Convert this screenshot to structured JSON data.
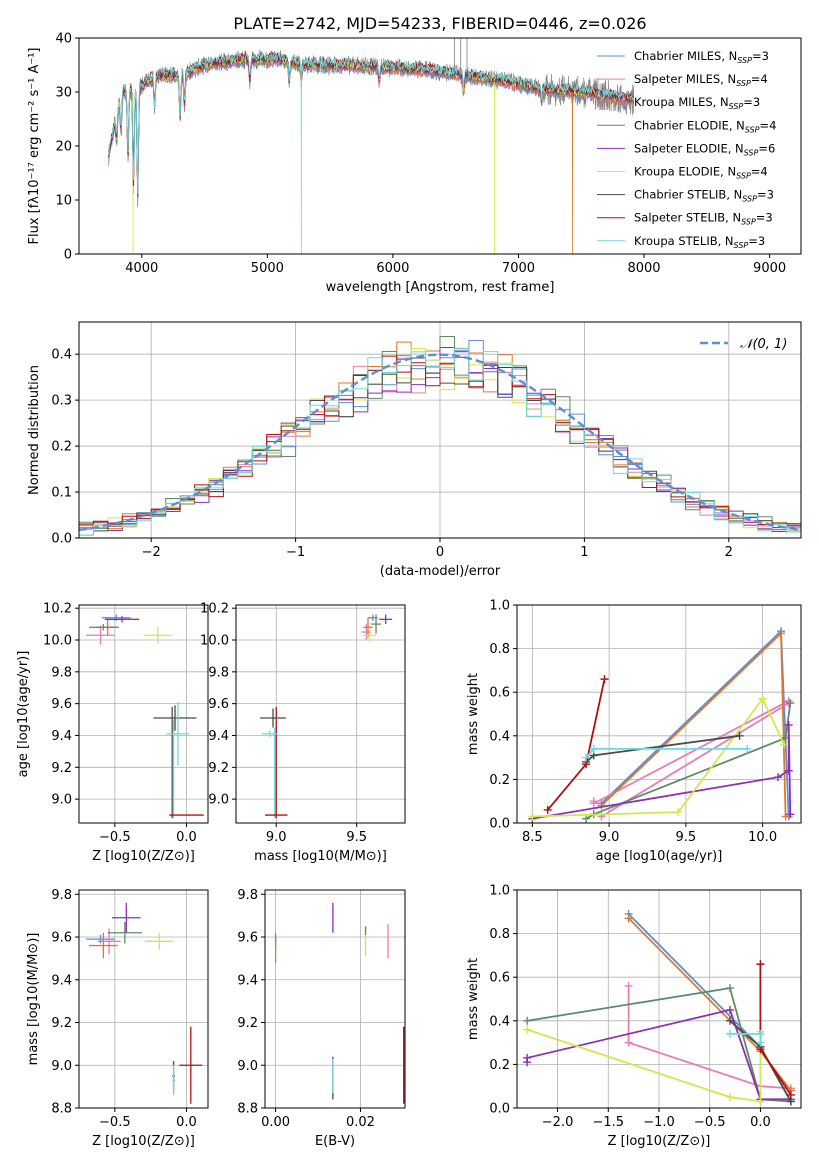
{
  "figure": {
    "title": "PLATE=2742, MJD=54233, FIBERID=0446, z=0.026"
  },
  "legend_ssp": [
    {
      "label": "Chabrier MILES, N",
      "sub": "SSP",
      "suf": "=3",
      "color": "#5b8fd6"
    },
    {
      "label": "Salpeter MILES, N",
      "sub": "SSP",
      "suf": "=4",
      "color": "#e87cb8"
    },
    {
      "label": "Kroupa MILES, N",
      "sub": "SSP",
      "suf": "=3",
      "color": "#e0782c"
    },
    {
      "label": "Chabrier ELODIE, N",
      "sub": "SSP",
      "suf": "=4",
      "color": "#5e8c68"
    },
    {
      "label": "Salpeter ELODIE, N",
      "sub": "SSP",
      "suf": "=6",
      "color": "#8e2fb4"
    },
    {
      "label": "Kroupa ELODIE, N",
      "sub": "SSP",
      "suf": "=4",
      "color": "#d2e84a"
    },
    {
      "label": "Chabrier STELIB, N",
      "sub": "SSP",
      "suf": "=3",
      "color": "#4b4b4b"
    },
    {
      "label": "Salpeter STELIB, N",
      "sub": "SSP",
      "suf": "=3",
      "color": "#b01010"
    },
    {
      "label": "Kroupa STELIB, N",
      "sub": "SSP",
      "suf": "=3",
      "color": "#6fd8e0"
    }
  ],
  "chart_data": [
    {
      "id": "spectrum",
      "type": "line",
      "xlabel": "wavelength [Angstrom, rest frame]",
      "ylabel": "Flux [fλ10⁻¹⁷ erg cm⁻² s⁻¹ A⁻¹]",
      "xlim": [
        3500,
        9250
      ],
      "ylim": [
        0,
        40
      ],
      "xticks": [
        4000,
        5000,
        6000,
        7000,
        8000,
        9000
      ],
      "yticks": [
        0,
        10,
        20,
        30,
        40
      ],
      "data_range": [
        3735,
        7920
      ],
      "continuum": [
        [
          3735,
          18
        ],
        [
          3800,
          26
        ],
        [
          3850,
          30
        ],
        [
          3950,
          30
        ],
        [
          4100,
          33
        ],
        [
          4300,
          33
        ],
        [
          4500,
          35
        ],
        [
          4800,
          36
        ],
        [
          5100,
          36
        ],
        [
          5300,
          35
        ],
        [
          5600,
          35
        ],
        [
          6000,
          34.5
        ],
        [
          6300,
          34
        ],
        [
          6600,
          33
        ],
        [
          6900,
          32
        ],
        [
          7200,
          30.5
        ],
        [
          7500,
          30
        ],
        [
          7800,
          29
        ],
        [
          7920,
          28.5
        ]
      ],
      "absorption_dips": [
        [
          3800,
          5
        ],
        [
          3835,
          6
        ],
        [
          3890,
          12
        ],
        [
          3934,
          18
        ],
        [
          3968,
          20
        ],
        [
          4102,
          6
        ],
        [
          4305,
          8
        ],
        [
          4340,
          6
        ],
        [
          4861,
          4
        ],
        [
          5175,
          4
        ],
        [
          5270,
          3
        ],
        [
          5890,
          3
        ],
        [
          6563,
          3
        ],
        [
          7185,
          2
        ]
      ],
      "spikes": [
        [
          3930,
          0,
          "Kroupa ELODIE"
        ],
        [
          5270,
          0,
          "Kroupa STELIB"
        ],
        [
          6810,
          0,
          "Kroupa ELODIE"
        ],
        [
          7430,
          0,
          "Kroupa MILES"
        ],
        [
          6490,
          40,
          "data"
        ],
        [
          6540,
          40,
          "data"
        ],
        [
          6590,
          40,
          "data"
        ]
      ]
    },
    {
      "id": "residuals",
      "type": "histogram",
      "xlabel": "(data-model)/error",
      "ylabel": "Normed distribution",
      "xlim": [
        -2.5,
        2.5
      ],
      "ylim": [
        0,
        0.47
      ],
      "xticks": [
        -2,
        -1,
        0,
        1,
        2
      ],
      "yticks": [
        0.0,
        0.1,
        0.2,
        0.3,
        0.4
      ],
      "bin_width": 0.1,
      "legend": "𝒩(0, 1)",
      "gaussian": {
        "mean": 0,
        "sigma": 1,
        "color": "#5b8fd6"
      }
    },
    {
      "id": "age-vs-Z",
      "type": "scatter",
      "xlabel": "Z [log10(Z/Z⊙)]",
      "ylabel": "age  [log10(age/yr)]",
      "xlim": [
        -0.75,
        0.15
      ],
      "ylim": [
        8.85,
        10.22
      ],
      "xticks": [
        -0.5,
        0.0
      ],
      "yticks": [
        9.0,
        9.2,
        9.4,
        9.6,
        9.8,
        10.0,
        10.2
      ],
      "points": [
        {
          "x": -0.49,
          "y": 10.14,
          "ex": 0.1,
          "ey": 0.02,
          "c": "#5b8fd6"
        },
        {
          "x": -0.6,
          "y": 10.03,
          "ex": 0.1,
          "ey": 0.06,
          "c": "#e87cb8"
        },
        {
          "x": -0.55,
          "y": 10.08,
          "ex": 0.08,
          "ey": 0.05,
          "c": "#e0782c"
        },
        {
          "x": -0.58,
          "y": 10.08,
          "ex": 0.1,
          "ey": 0.02,
          "c": "#5e8c68"
        },
        {
          "x": -0.45,
          "y": 10.13,
          "ex": 0.12,
          "ey": 0.02,
          "c": "#8e2fb4"
        },
        {
          "x": -0.2,
          "y": 10.03,
          "ex": 0.1,
          "ey": 0.05,
          "c": "#d2e84a"
        },
        {
          "x": -0.08,
          "y": 9.51,
          "ex": 0.15,
          "ey": 0.08,
          "c": "#4b4b4b"
        },
        {
          "x": 0.0,
          "y": 8.9,
          "ex": 0.12,
          "ey": 0.0,
          "c": "#b01010"
        },
        {
          "x": -0.06,
          "y": 9.41,
          "ex": 0.08,
          "ey": 0.2,
          "c": "#6fd8e0"
        }
      ],
      "extra_lines": [
        {
          "x": -0.1,
          "y0": 8.88,
          "y1": 9.58,
          "c": "#4b4b4b"
        },
        {
          "x": -0.09,
          "y0": 8.88,
          "y1": 9.5,
          "c": "#6fd8e0"
        }
      ]
    },
    {
      "id": "age-vs-mass",
      "type": "scatter",
      "xlabel": "mass [log10(M/M⊙)]",
      "ylabel": "",
      "xlim": [
        8.75,
        9.8
      ],
      "ylim": [
        8.85,
        10.22
      ],
      "xticks": [
        9.0,
        9.5
      ],
      "yticks": [
        9.0,
        9.2,
        9.4,
        9.6,
        9.8,
        10.0,
        10.2
      ],
      "points": [
        {
          "x": 9.6,
          "y": 10.14,
          "ex": 0.03,
          "ey": 0.02,
          "c": "#5b8fd6"
        },
        {
          "x": 9.56,
          "y": 10.05,
          "ex": 0.03,
          "ey": 0.05,
          "c": "#e87cb8"
        },
        {
          "x": 9.57,
          "y": 10.08,
          "ex": 0.03,
          "ey": 0.06,
          "c": "#e0782c"
        },
        {
          "x": 9.62,
          "y": 10.1,
          "ex": 0.03,
          "ey": 0.06,
          "c": "#5e8c68"
        },
        {
          "x": 9.68,
          "y": 10.13,
          "ex": 0.04,
          "ey": 0.03,
          "c": "#8e2fb4"
        },
        {
          "x": 9.58,
          "y": 10.03,
          "ex": 0.04,
          "ey": 0.04,
          "c": "#d2e84a"
        },
        {
          "x": 8.98,
          "y": 9.51,
          "ex": 0.08,
          "ey": 0.06,
          "c": "#4b4b4b"
        },
        {
          "x": 9.0,
          "y": 8.9,
          "ex": 0.07,
          "ey": 0.0,
          "c": "#b01010"
        },
        {
          "x": 8.96,
          "y": 9.41,
          "ex": 0.05,
          "ey": 0.02,
          "c": "#6fd8e0"
        }
      ],
      "extra_lines": [
        {
          "x": 9.0,
          "y0": 8.88,
          "y1": 9.58,
          "c": "#b01010"
        },
        {
          "x": 8.99,
          "y0": 8.88,
          "y1": 9.45,
          "c": "#6fd8e0"
        }
      ]
    },
    {
      "id": "weight-vs-age",
      "type": "line",
      "xlabel": "age  [log10(age/yr)]",
      "ylabel": "mass weight",
      "xlim": [
        8.4,
        10.25
      ],
      "ylim": [
        0,
        1.0
      ],
      "xticks": [
        8.5,
        9.0,
        9.5,
        10.0
      ],
      "yticks": [
        0.0,
        0.2,
        0.4,
        0.6,
        0.8,
        1.0
      ],
      "series": [
        {
          "c": "#5b8fd6",
          "pts": [
            [
              8.95,
              0.09
            ],
            [
              10.12,
              0.88
            ],
            [
              10.17,
              0.03
            ]
          ]
        },
        {
          "c": "#e87cb8",
          "pts": [
            [
              8.9,
              0.1
            ],
            [
              8.9,
              0.09
            ],
            [
              10.17,
              0.56
            ],
            [
              10.17,
              0.55
            ],
            [
              8.95,
              0.03
            ]
          ]
        },
        {
          "c": "#e0782c",
          "pts": [
            [
              8.95,
              0.08
            ],
            [
              10.12,
              0.87
            ],
            [
              10.15,
              0.03
            ]
          ]
        },
        {
          "c": "#5e8c68",
          "pts": [
            [
              8.85,
              0.02
            ],
            [
              8.9,
              0.04
            ],
            [
              10.15,
              0.39
            ],
            [
              10.18,
              0.55
            ]
          ]
        },
        {
          "c": "#8e2fb4",
          "pts": [
            [
              8.5,
              0.02
            ],
            [
              10.1,
              0.21
            ],
            [
              10.17,
              0.24
            ],
            [
              10.17,
              0.45
            ],
            [
              10.18,
              0.04
            ]
          ]
        },
        {
          "c": "#d2e84a",
          "pts": [
            [
              8.5,
              0.03
            ],
            [
              9.45,
              0.05
            ],
            [
              10.0,
              0.57
            ],
            [
              10.14,
              0.36
            ]
          ]
        },
        {
          "c": "#4b4b4b",
          "pts": [
            [
              8.85,
              0.28
            ],
            [
              8.9,
              0.31
            ],
            [
              9.85,
              0.4
            ]
          ]
        },
        {
          "c": "#b01010",
          "pts": [
            [
              8.6,
              0.06
            ],
            [
              8.85,
              0.27
            ],
            [
              8.97,
              0.66
            ]
          ]
        },
        {
          "c": "#6fd8e0",
          "pts": [
            [
              8.85,
              0.3
            ],
            [
              8.9,
              0.34
            ],
            [
              9.9,
              0.34
            ]
          ]
        }
      ]
    },
    {
      "id": "mass-vs-Z",
      "type": "scatter",
      "xlabel": "Z [log10(Z/Z⊙)]",
      "ylabel": "mass [log10(M/M⊙)]",
      "xlim": [
        -0.75,
        0.15
      ],
      "ylim": [
        8.8,
        9.82
      ],
      "xticks": [
        -0.5,
        0.0
      ],
      "yticks": [
        8.8,
        9.0,
        9.2,
        9.4,
        9.6,
        9.8
      ],
      "points": [
        {
          "x": -0.6,
          "y": 9.59,
          "ex": 0.1,
          "ey": 0.02,
          "c": "#5b8fd6"
        },
        {
          "x": -0.54,
          "y": 9.58,
          "ex": 0.08,
          "ey": 0.06,
          "c": "#e87cb8"
        },
        {
          "x": -0.58,
          "y": 9.56,
          "ex": 0.1,
          "ey": 0.06,
          "c": "#e0782c"
        },
        {
          "x": -0.43,
          "y": 9.62,
          "ex": 0.12,
          "ey": 0.05,
          "c": "#5e8c68"
        },
        {
          "x": -0.42,
          "y": 9.69,
          "ex": 0.1,
          "ey": 0.07,
          "c": "#8e2fb4"
        },
        {
          "x": -0.19,
          "y": 9.58,
          "ex": 0.1,
          "ey": 0.04,
          "c": "#d2e84a"
        },
        {
          "x": -0.09,
          "y": 8.95,
          "ex": 0.01,
          "ey": 0.07,
          "c": "#4b4b4b"
        },
        {
          "x": 0.03,
          "y": 9.0,
          "ex": 0.08,
          "ey": 0.18,
          "c": "#b01010"
        },
        {
          "x": -0.09,
          "y": 8.93,
          "ex": 0.01,
          "ey": 0.07,
          "c": "#6fd8e0"
        }
      ]
    },
    {
      "id": "mass-vs-ebv",
      "type": "scatter",
      "xlabel": "E(B-V)",
      "ylabel": "",
      "xlim": [
        -0.0025,
        0.0305
      ],
      "ylim": [
        8.8,
        9.82
      ],
      "xticks": [
        0.0,
        0.02
      ],
      "xtick_labels": [
        "0.00",
        "0.02"
      ],
      "yticks": [
        8.8,
        9.0,
        9.2,
        9.4,
        9.6,
        9.8
      ],
      "points": [
        {
          "x": 0.0,
          "y": 9.55,
          "ey": 0.07,
          "c": "#e0782c"
        },
        {
          "x": 0.0,
          "y": 9.58,
          "ey": 0.02,
          "c": "#5b8fd6"
        },
        {
          "x": 0.0135,
          "y": 9.69,
          "ey": 0.07,
          "c": "#8e2fb4"
        },
        {
          "x": 0.0212,
          "y": 9.58,
          "ey": 0.07,
          "c": "#d2e84a"
        },
        {
          "x": 0.0212,
          "y": 9.63,
          "ey": 0.02,
          "c": "#5e8c68"
        },
        {
          "x": 0.0265,
          "y": 9.58,
          "ey": 0.08,
          "c": "#e87cb8"
        },
        {
          "x": 0.0135,
          "y": 8.94,
          "ey": 0.1,
          "c": "#4b4b4b"
        },
        {
          "x": 0.0135,
          "y": 8.95,
          "ey": 0.08,
          "c": "#6fd8e0"
        },
        {
          "x": 0.0302,
          "y": 9.0,
          "ey": 0.18,
          "c": "#b01010"
        }
      ]
    },
    {
      "id": "weight-vs-Z",
      "type": "line",
      "xlabel": "Z [log10(Z/Z⊙)]",
      "ylabel": "mass weight",
      "xlim": [
        -2.4,
        0.4
      ],
      "ylim": [
        0,
        1.0
      ],
      "xticks": [
        -2.0,
        -1.5,
        -1.0,
        -0.5,
        0.0
      ],
      "yticks": [
        0.0,
        0.2,
        0.4,
        0.6,
        0.8,
        1.0
      ],
      "series": [
        {
          "c": "#5b8fd6",
          "pts": [
            [
              -1.3,
              0.89
            ],
            [
              0.0,
              0.28
            ],
            [
              0.3,
              0.03
            ]
          ]
        },
        {
          "c": "#e87cb8",
          "pts": [
            [
              -1.3,
              0.56
            ],
            [
              -1.3,
              0.3
            ],
            [
              0.0,
              0.1
            ],
            [
              0.3,
              0.09
            ]
          ]
        },
        {
          "c": "#e0782c",
          "pts": [
            [
              -1.3,
              0.87
            ],
            [
              0.0,
              0.26
            ],
            [
              0.3,
              0.08
            ]
          ]
        },
        {
          "c": "#5e8c68",
          "pts": [
            [
              -2.3,
              0.4
            ],
            [
              -0.3,
              0.55
            ],
            [
              0.0,
              0.04
            ],
            [
              0.3,
              0.03
            ]
          ]
        },
        {
          "c": "#8e2fb4",
          "pts": [
            [
              -2.3,
              0.21
            ],
            [
              -2.3,
              0.23
            ],
            [
              -0.3,
              0.45
            ],
            [
              0.0,
              0.04
            ],
            [
              0.3,
              0.04
            ]
          ]
        },
        {
          "c": "#d2e84a",
          "pts": [
            [
              -2.3,
              0.36
            ],
            [
              -0.3,
              0.05
            ],
            [
              0.0,
              0.03
            ],
            [
              0.0,
              0.35
            ]
          ]
        },
        {
          "c": "#4b4b4b",
          "pts": [
            [
              -0.3,
              0.4
            ],
            [
              0.0,
              0.28
            ],
            [
              0.3,
              0.03
            ]
          ]
        },
        {
          "c": "#b01010",
          "pts": [
            [
              0.0,
              0.66
            ],
            [
              0.0,
              0.27
            ],
            [
              0.3,
              0.06
            ]
          ]
        },
        {
          "c": "#6fd8e0",
          "pts": [
            [
              -0.3,
              0.34
            ],
            [
              0.0,
              0.34
            ],
            [
              0.0,
              0.3
            ]
          ]
        }
      ]
    }
  ]
}
